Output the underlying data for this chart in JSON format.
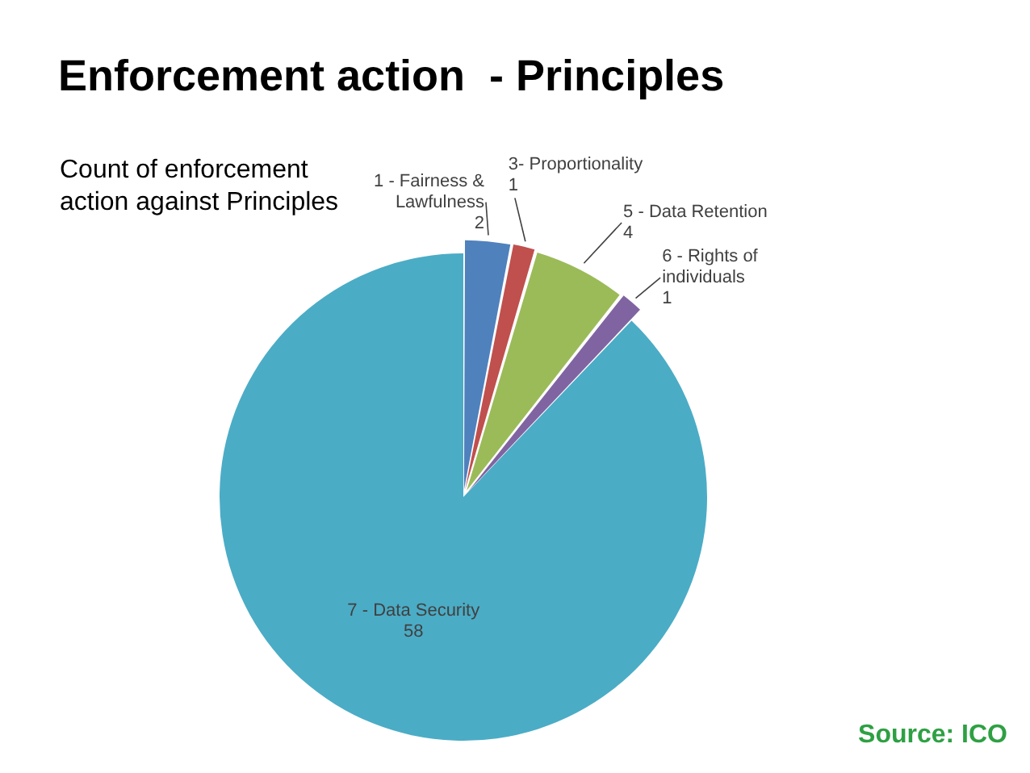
{
  "chart_data": {
    "type": "pie",
    "title": "Enforcement action  - Principles",
    "subtitle": "Count of enforcement action against Principles",
    "categories": [
      "1 - Fairness & Lawfulness",
      "3- Proportionality",
      "5 - Data Retention",
      "6 - Rights of individuals",
      "7 - Data Security"
    ],
    "values": [
      2,
      1,
      4,
      1,
      58
    ],
    "colors": [
      "#4f81bd",
      "#c0504d",
      "#9bbb59",
      "#8064a2",
      "#4bacc6"
    ],
    "data_labels": true,
    "legend": false,
    "annotations": [
      "Source: ICO"
    ]
  }
}
